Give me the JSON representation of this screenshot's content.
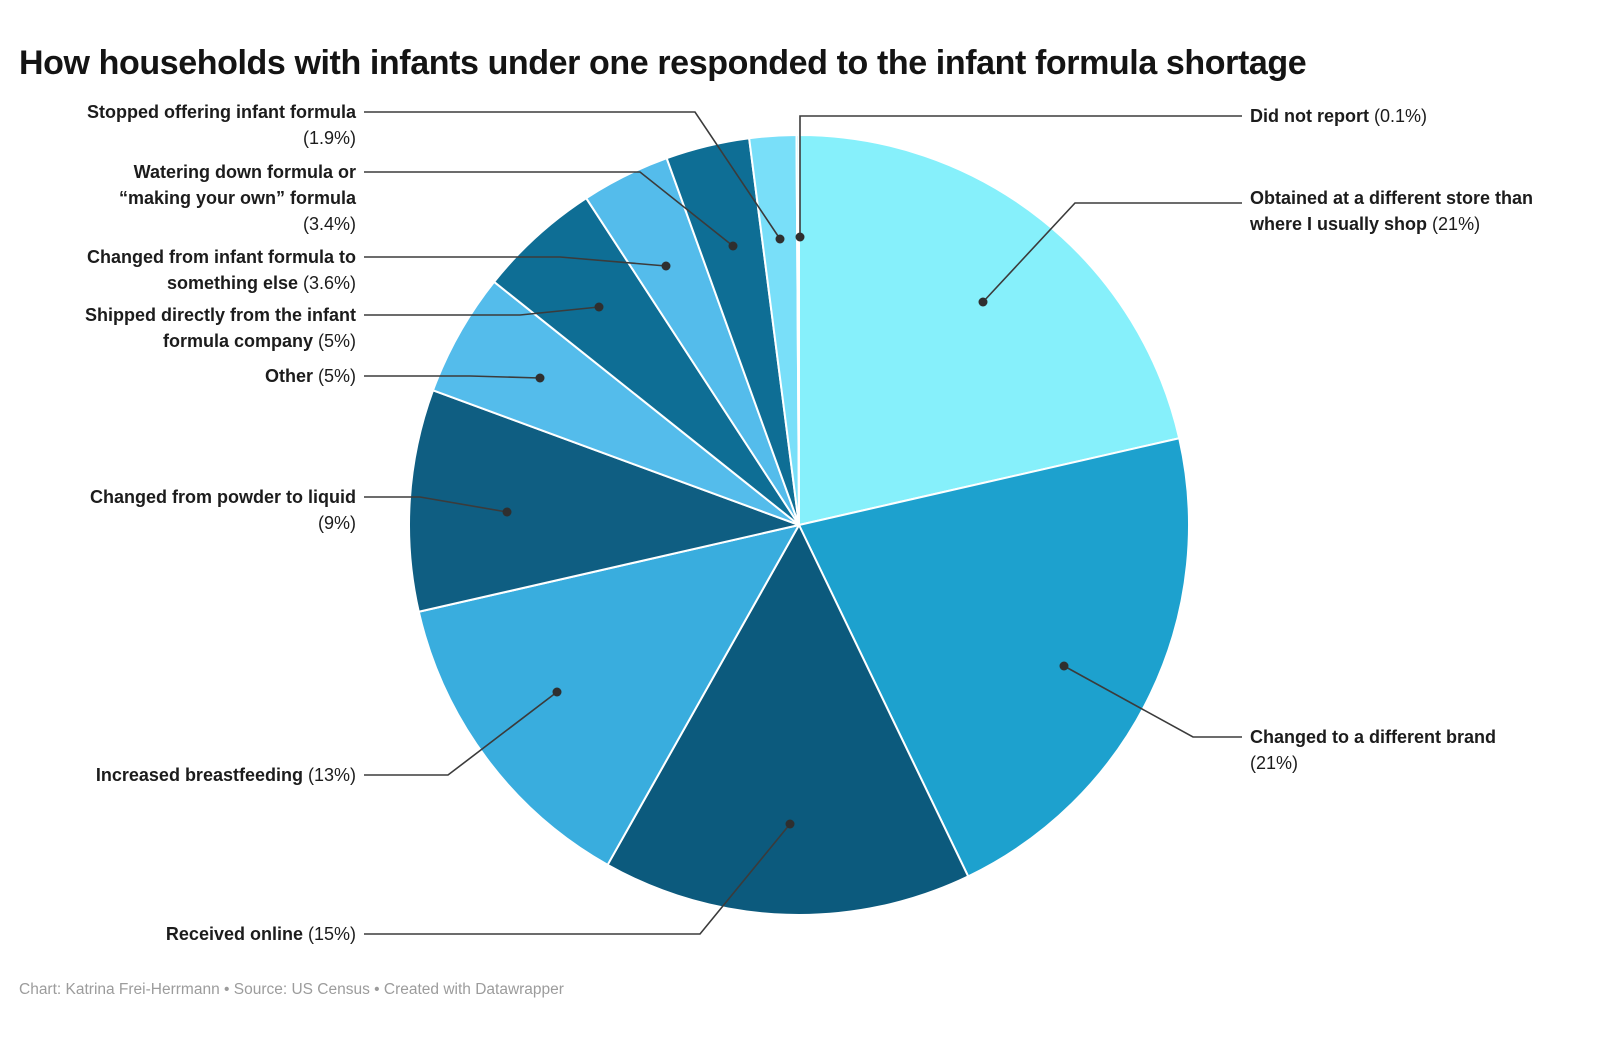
{
  "title": "How households with infants under one responded to the infant formula shortage",
  "footer": "Chart: Katrina Frei-Herrmann • Source: US Census • Created with Datawrapper",
  "labels": {
    "stopped": {
      "name_lines": [
        "Stopped offering infant formula"
      ],
      "pct": "(1.9%)"
    },
    "watering": {
      "name_lines": [
        "Watering down formula or",
        "“making your own” formula"
      ],
      "pct": "(3.4%)"
    },
    "something": {
      "name_lines": [
        "Changed from infant formula to",
        "something else"
      ],
      "pct": "(3.6%)"
    },
    "shipped": {
      "name_lines": [
        "Shipped directly from the infant",
        "formula company"
      ],
      "pct": "(5%)"
    },
    "other": {
      "name_lines": [
        "Other"
      ],
      "pct": "(5%)"
    },
    "powder": {
      "name_lines": [
        "Changed from powder to liquid"
      ],
      "pct": "(9%)"
    },
    "breastfeeding": {
      "name_lines": [
        "Increased breastfeeding"
      ],
      "pct": "(13%)"
    },
    "received": {
      "name_lines": [
        "Received online"
      ],
      "pct": "(15%)"
    },
    "didnot": {
      "name_lines": [
        "Did not report"
      ],
      "pct": "(0.1%)"
    },
    "obtained": {
      "name_lines": [
        "Obtained at a different store than",
        "where I usually shop"
      ],
      "pct": "(21%)"
    },
    "brand": {
      "name_lines": [
        "Changed to a different brand"
      ],
      "pct": "(21%)"
    }
  },
  "chart_data": {
    "type": "pie",
    "title": "How households with infants under one responded to the infant formula shortage",
    "unit": "%",
    "direction": "clockwise",
    "start_angle_deg": 0,
    "donut": false,
    "slices": [
      {
        "label": "Obtained at a different store than where I usually shop",
        "value": 21,
        "display": "21%",
        "color": "#86F0FB"
      },
      {
        "label": "Changed to a different brand",
        "value": 21,
        "display": "21%",
        "color": "#1DA1CE"
      },
      {
        "label": "Received online",
        "value": 15,
        "display": "15%",
        "color": "#0C5A7D"
      },
      {
        "label": "Increased breastfeeding",
        "value": 13,
        "display": "13%",
        "color": "#39ADDE"
      },
      {
        "label": "Changed from powder to liquid",
        "value": 9,
        "display": "9%",
        "color": "#0F5E82"
      },
      {
        "label": "Other",
        "value": 5,
        "display": "5%",
        "color": "#54BCEB"
      },
      {
        "label": "Shipped directly from the infant formula company",
        "value": 5,
        "display": "5%",
        "color": "#0E6E95"
      },
      {
        "label": "Changed from infant formula to something else",
        "value": 3.6,
        "display": "3.6%",
        "color": "#54BCEB"
      },
      {
        "label": "Watering down formula or “making your own” formula",
        "value": 3.4,
        "display": "3.4%",
        "color": "#0E6E95"
      },
      {
        "label": "Stopped offering infant formula",
        "value": 1.9,
        "display": "1.9%",
        "color": "#79DFF9"
      },
      {
        "label": "Did not report",
        "value": 0.1,
        "display": "0.1%",
        "color": "#B9F6FE"
      }
    ]
  }
}
